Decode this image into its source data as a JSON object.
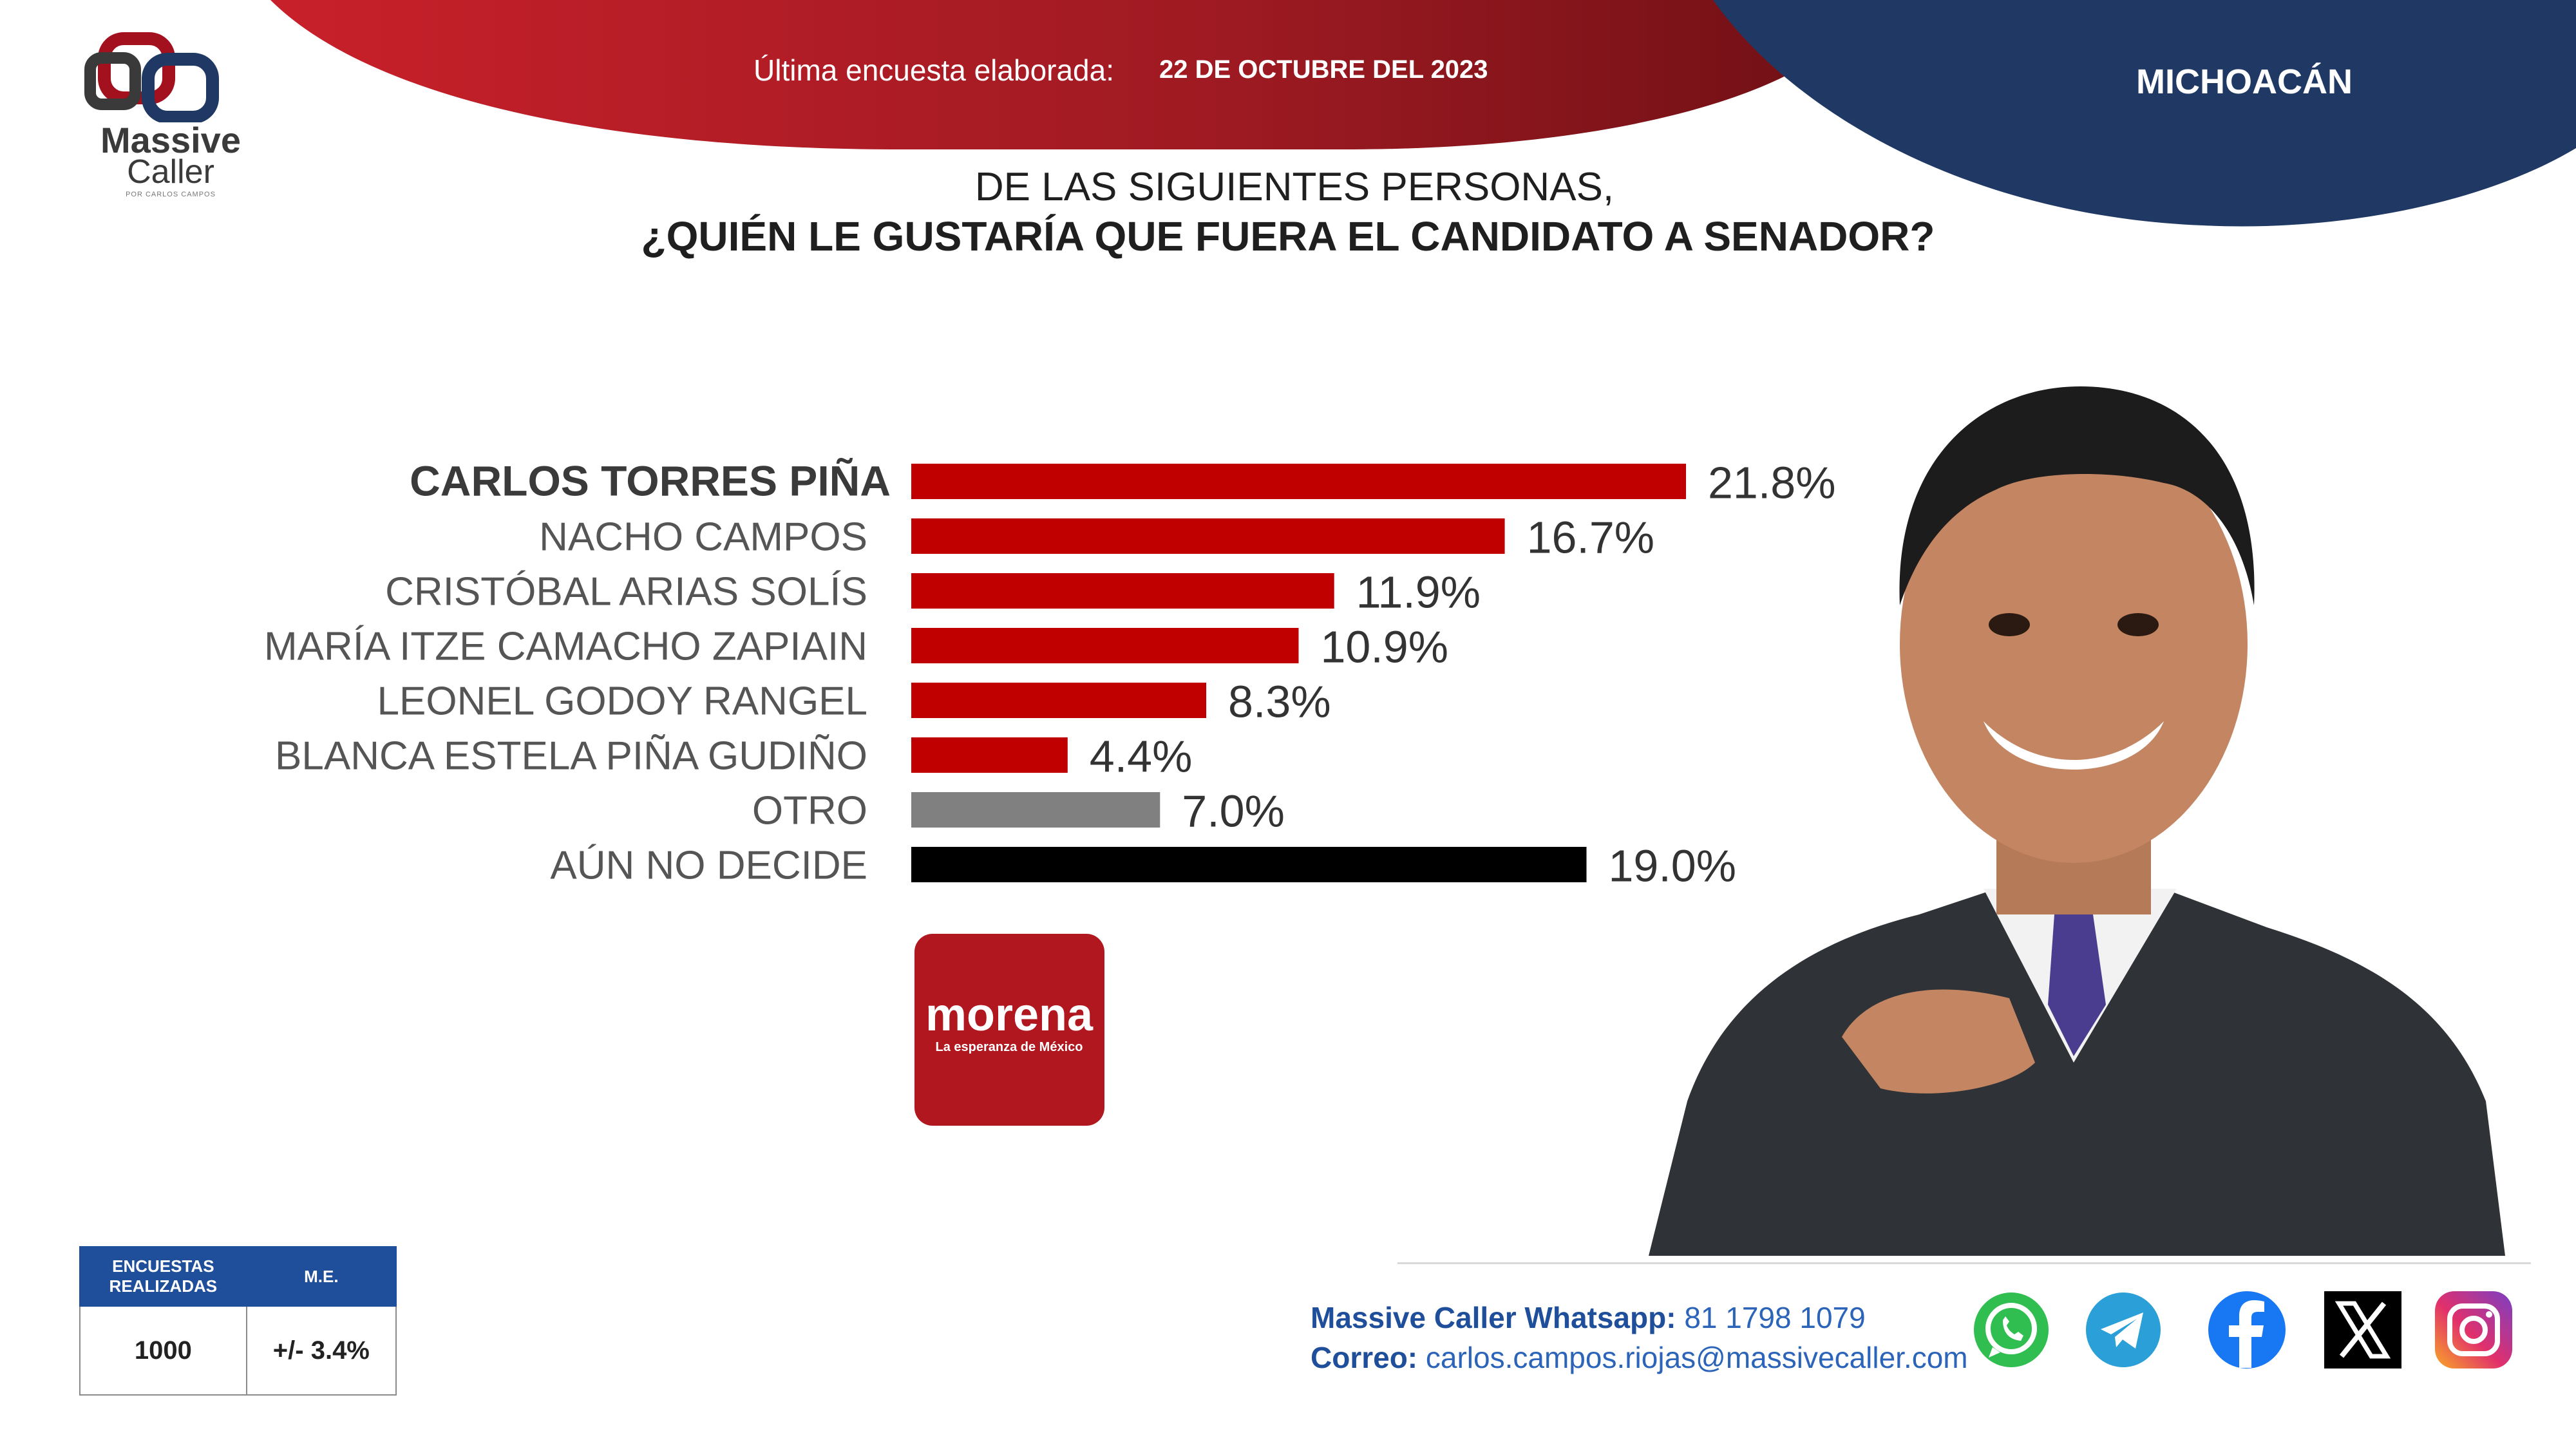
{
  "brand": {
    "name_line1": "Massive",
    "name_line2": "Caller",
    "tagline": "POR CARLOS CAMPOS"
  },
  "header": {
    "survey_label": "Última encuesta elaborada:",
    "survey_date": "22 DE OCTUBRE DEL 2023",
    "state": "MICHOACÁN"
  },
  "question": {
    "line1": "DE LAS SIGUIENTES  PERSONAS,",
    "line2": "¿QUIÉN LE GUSTARÍA QUE FUERA EL CANDIDATO  A SENADOR?"
  },
  "colors": {
    "red": "#c00000",
    "gray": "#808080",
    "black": "#000000",
    "navy": "#1f3864",
    "blue": "#1f4e9a"
  },
  "chart_data": {
    "type": "bar",
    "orientation": "horizontal",
    "categories": [
      "CARLOS TORRES PIÑA",
      "NACHO CAMPOS",
      "CRISTÓBAL ARIAS SOLÍS",
      "MARÍA ITZE CAMACHO ZAPIAIN",
      "LEONEL GODOY RANGEL",
      "BLANCA ESTELA PIÑA GUDIÑO",
      "OTRO",
      "AÚN NO DECIDE"
    ],
    "values": [
      21.8,
      16.7,
      11.9,
      10.9,
      8.3,
      4.4,
      7.0,
      19.0
    ],
    "value_labels": [
      "21.8%",
      "16.7%",
      "11.9%",
      "10.9%",
      "8.3%",
      "4.4%",
      "7.0%",
      "19.0%"
    ],
    "bar_colors": [
      "#c00000",
      "#c00000",
      "#c00000",
      "#c00000",
      "#c00000",
      "#c00000",
      "#808080",
      "#000000"
    ],
    "highlighted": "CARLOS TORRES PIÑA",
    "title": "",
    "xlabel": "",
    "ylabel": "",
    "xlim": [
      0,
      21.8
    ],
    "grid": false,
    "legend": "none"
  },
  "party_logo": {
    "name": "morena",
    "tagline": "La esperanza de México"
  },
  "stats": {
    "col1_header_l1": "ENCUESTAS",
    "col1_header_l2": "REALIZADAS",
    "col2_header": "M.E.",
    "col1_value": "1000",
    "col2_value": "+/-  3.4%"
  },
  "contact": {
    "whatsapp_label": "Massive Caller Whatsapp:",
    "whatsapp_number": "81 1798  1079",
    "email_label": "Correo:",
    "email": "carlos.campos.riojas@massivecaller.com"
  },
  "social_icons": [
    "whatsapp-icon",
    "telegram-icon",
    "facebook-icon",
    "x-icon",
    "instagram-icon"
  ]
}
